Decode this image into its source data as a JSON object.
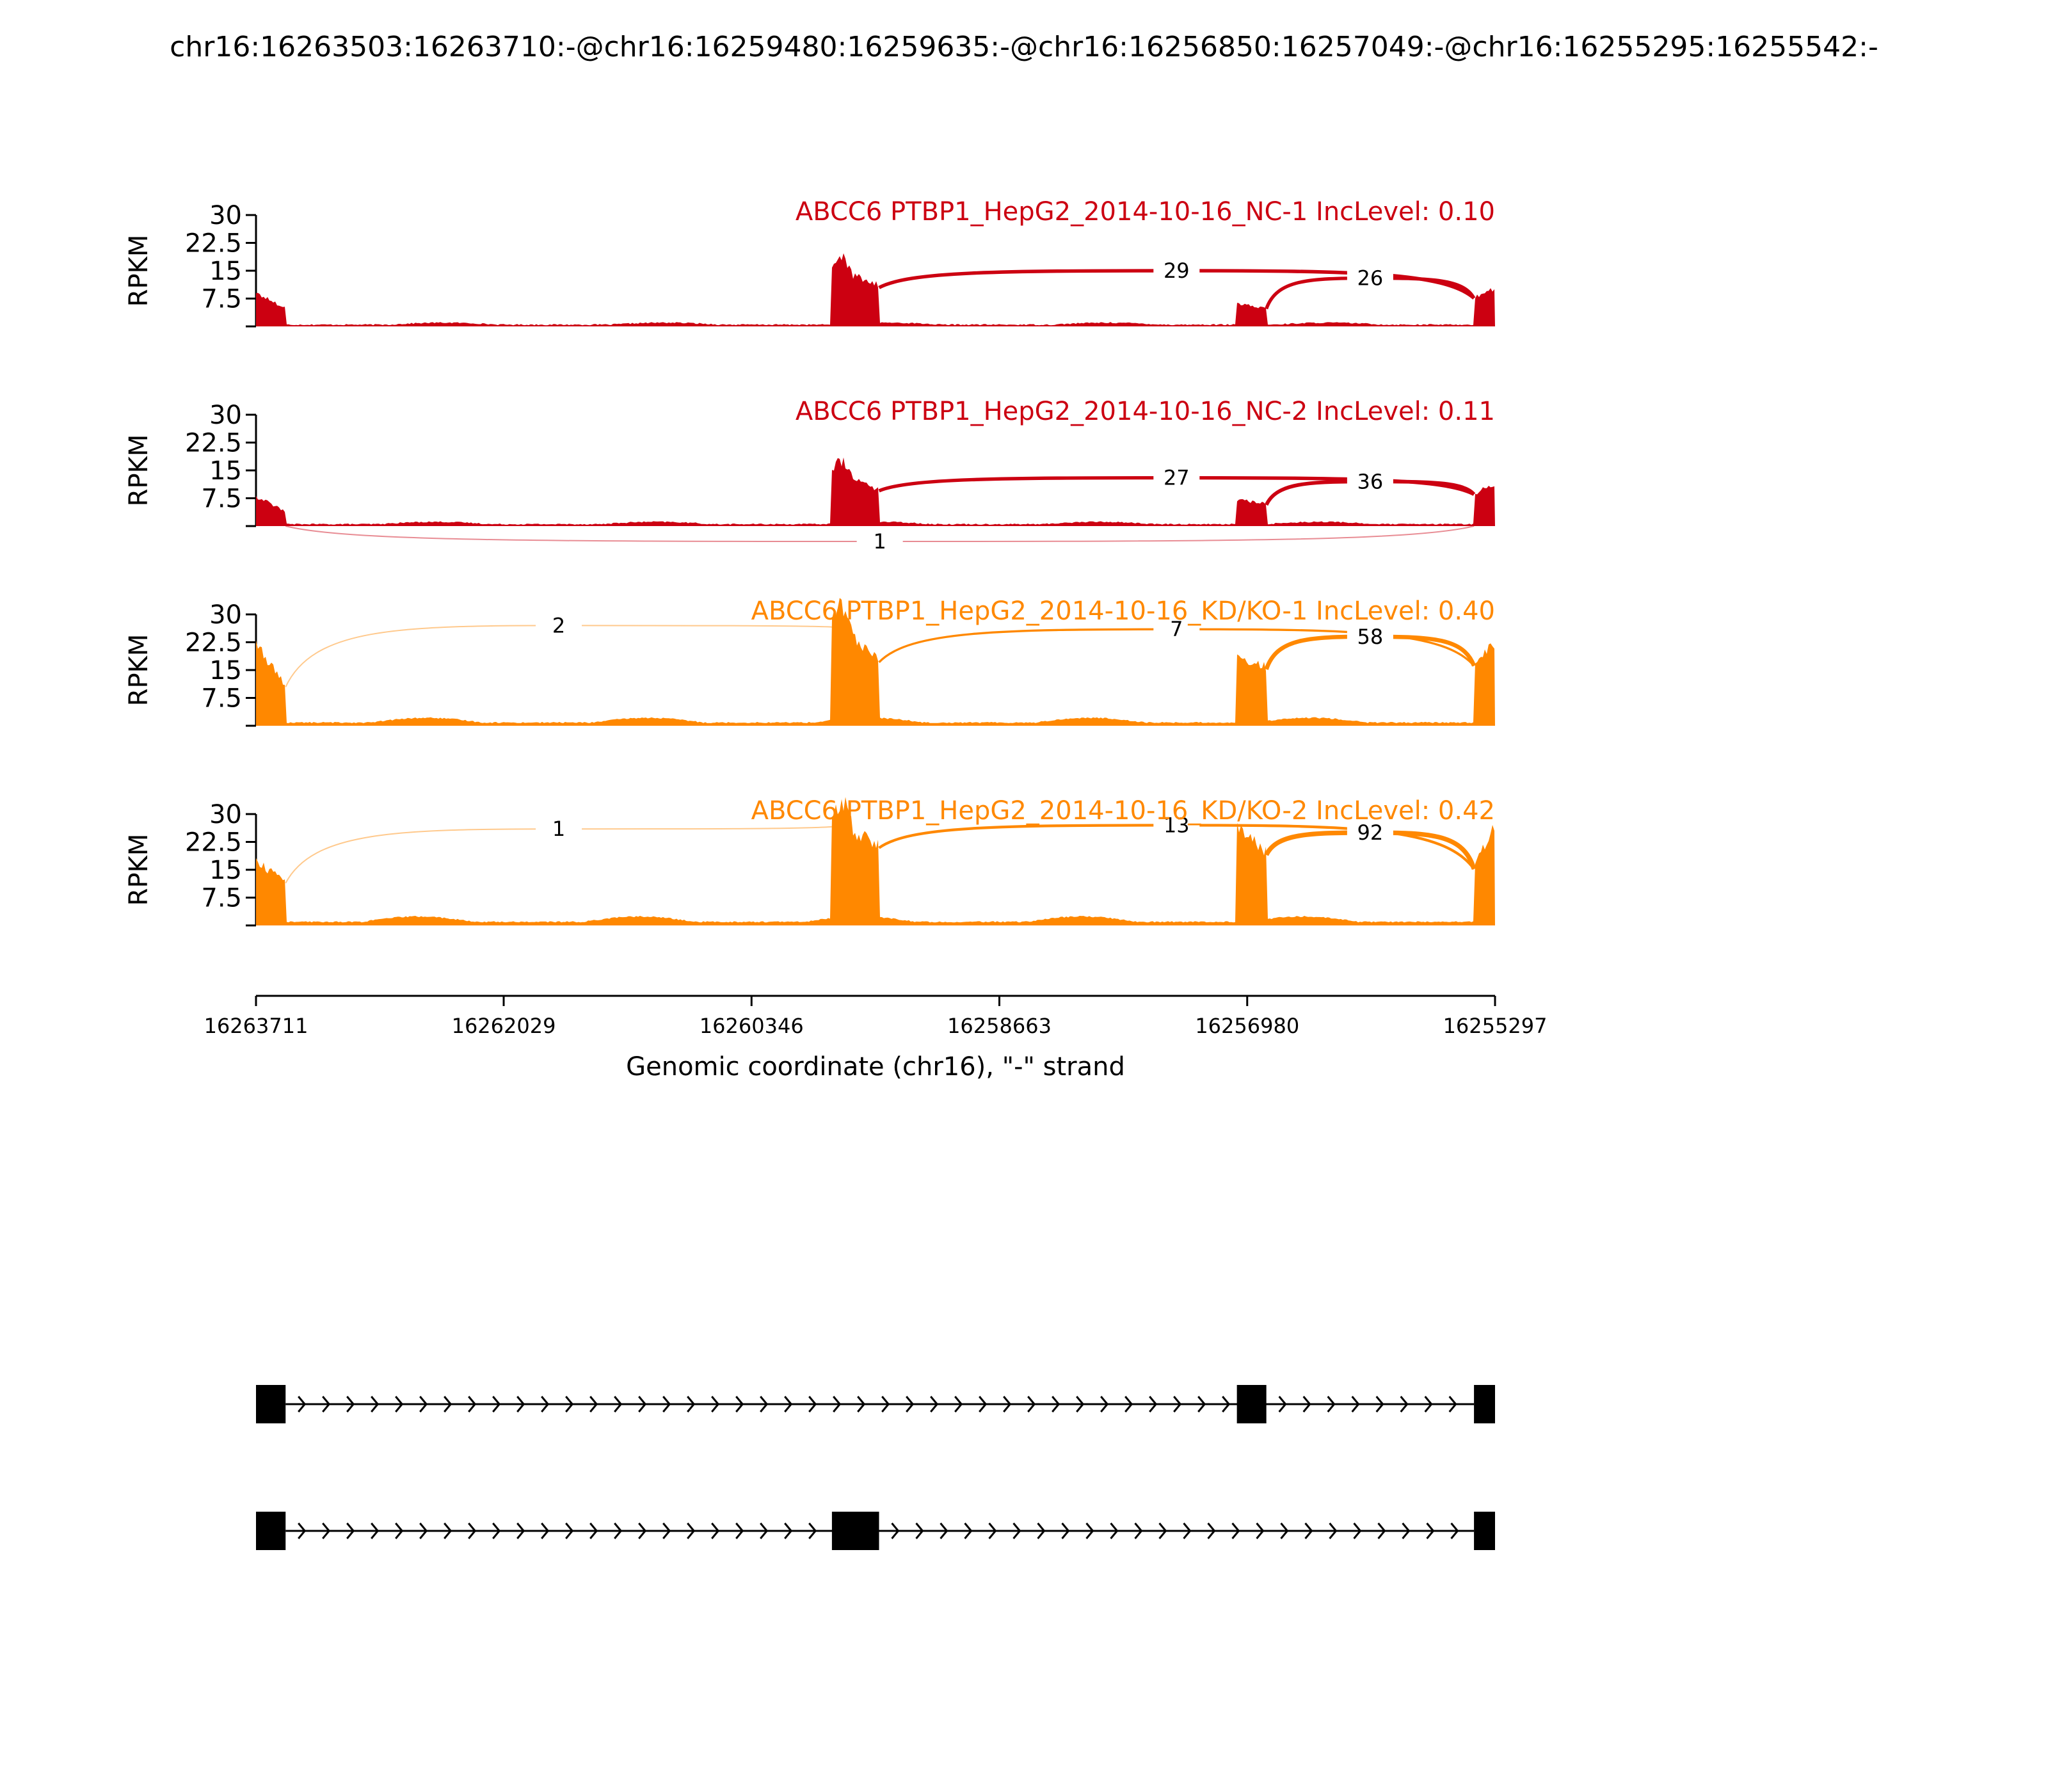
{
  "figure": {
    "title": "chr16:16263503:16263710:-@chr16:16259480:16259635:-@chr16:16256850:16257049:-@chr16:16255295:16255542:-"
  },
  "colors": {
    "nc": "#CC0011",
    "kd": "#FF8800",
    "axis": "#000000"
  },
  "chart_data": {
    "type": "area",
    "x_range": [
      16263711,
      16255297
    ],
    "xticks": [
      16263711,
      16262029,
      16260346,
      16258663,
      16256980,
      16255297
    ],
    "xlabel": "Genomic coordinate (chr16), \"-\" strand",
    "ylabel": "RPKM",
    "ylim": [
      0,
      30
    ],
    "yticks": [
      "7.5",
      "15",
      "22.5",
      "30"
    ],
    "exons_bp": [
      [
        16263711,
        16263510
      ],
      [
        16259800,
        16259480
      ],
      [
        16257050,
        16256850
      ],
      [
        16255440,
        16255297
      ]
    ],
    "tracks": [
      {
        "name": "ABCC6 PTBP1_HepG2_2014-10-16_NC-1 IncLevel: 0.10",
        "group": "nc",
        "exon_levels": [
          [
            9,
            5
          ],
          [
            16,
            11
          ],
          [
            6,
            5
          ],
          [
            8,
            10
          ]
        ],
        "intron_level": 0.6,
        "junctions": [
          {
            "label": "29",
            "from": 16259480,
            "to": 16255440,
            "side": "above",
            "height": 15
          },
          {
            "label": "26",
            "from": 16256850,
            "to": 16255440,
            "side": "above",
            "height": 13
          }
        ]
      },
      {
        "name": "ABCC6 PTBP1_HepG2_2014-10-16_NC-2 IncLevel: 0.11",
        "group": "nc",
        "exon_levels": [
          [
            8,
            4
          ],
          [
            15,
            10
          ],
          [
            7,
            6
          ],
          [
            9,
            11
          ]
        ],
        "intron_level": 0.7,
        "junctions": [
          {
            "label": "27",
            "from": 16259480,
            "to": 16255440,
            "side": "above",
            "height": 13
          },
          {
            "label": "36",
            "from": 16256850,
            "to": 16255440,
            "side": "above",
            "height": 12
          },
          {
            "label": "1",
            "from": 16263510,
            "to": 16255440,
            "side": "below",
            "height": 4
          }
        ]
      },
      {
        "name": "ABCC6 PTBP1_HepG2_2014-10-16_KD/KO-1 IncLevel: 0.40",
        "group": "kd",
        "exon_levels": [
          [
            22,
            11
          ],
          [
            28,
            18
          ],
          [
            19,
            16
          ],
          [
            17,
            22
          ]
        ],
        "intron_level": 1.4,
        "junctions": [
          {
            "label": "2",
            "from": 16263510,
            "to": 16259800,
            "side": "above",
            "height": 27
          },
          {
            "label": "7",
            "from": 16259480,
            "to": 16255440,
            "side": "above",
            "height": 26
          },
          {
            "label": "58",
            "from": 16256850,
            "to": 16255440,
            "side": "above",
            "height": 24
          }
        ]
      },
      {
        "name": "ABCC6 PTBP1_HepG2_2014-10-16_KD/KO-2 IncLevel: 0.42",
        "group": "kd",
        "exon_levels": [
          [
            17,
            12
          ],
          [
            28,
            22
          ],
          [
            26,
            20
          ],
          [
            16,
            28
          ]
        ],
        "intron_level": 1.6,
        "junctions": [
          {
            "label": "1",
            "from": 16263510,
            "to": 16259800,
            "side": "above",
            "height": 26
          },
          {
            "label": "13",
            "from": 16259480,
            "to": 16255440,
            "side": "above",
            "height": 27
          },
          {
            "label": "92",
            "from": 16256850,
            "to": 16255440,
            "side": "above",
            "height": 25
          }
        ]
      }
    ],
    "isoforms": [
      {
        "exons_bp": [
          [
            16263711,
            16263510
          ],
          [
            16257050,
            16256850
          ],
          [
            16255440,
            16255297
          ]
        ]
      },
      {
        "exons_bp": [
          [
            16263711,
            16263510
          ],
          [
            16259800,
            16259480
          ],
          [
            16255440,
            16255297
          ]
        ]
      }
    ]
  }
}
